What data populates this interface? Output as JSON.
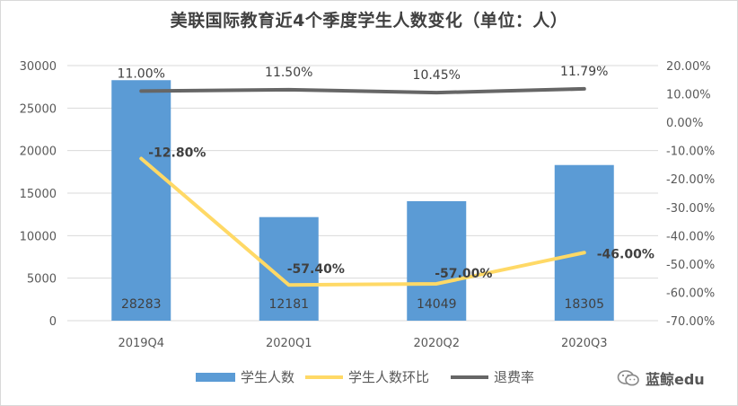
{
  "title": "美联国际教育近4个季度学生人数变化（单位：人）",
  "watermark": {
    "text": "蓝鲸edu",
    "icon": "wechat-icon"
  },
  "colors": {
    "bar": "#5b9bd5",
    "qoq": "#ffd966",
    "refund": "#666666",
    "grid": "#d9d9d9",
    "axis_text": "#595959"
  },
  "chart_data": {
    "type": "bar",
    "title": "美联国际教育近4个季度学生人数变化（单位：人）",
    "categories": [
      "2019Q4",
      "2020Q1",
      "2020Q2",
      "2020Q3"
    ],
    "left_axis": {
      "min": 0,
      "max": 30000,
      "step": 5000,
      "ticks": [
        "0",
        "5000",
        "10000",
        "15000",
        "20000",
        "25000",
        "30000"
      ]
    },
    "right_axis": {
      "min": -70,
      "max": 20,
      "step": 10,
      "ticks": [
        "-70.00%",
        "-60.00%",
        "-50.00%",
        "-40.00%",
        "-30.00%",
        "-20.00%",
        "-10.00%",
        "0.00%",
        "10.00%",
        "20.00%"
      ]
    },
    "series": [
      {
        "name": "学生人数",
        "type": "bar",
        "axis": "left",
        "values": [
          28283,
          12181,
          14049,
          18305
        ],
        "labels": [
          "28283",
          "12181",
          "14049",
          "18305"
        ]
      },
      {
        "name": "学生人数环比",
        "type": "line",
        "axis": "right",
        "values": [
          -12.8,
          -57.4,
          -57.0,
          -46.0
        ],
        "labels": [
          "-12.80%",
          "-57.40%",
          "-57.00%",
          "-46.00%"
        ]
      },
      {
        "name": "退费率",
        "type": "line",
        "axis": "right",
        "values": [
          11.0,
          11.5,
          10.45,
          11.79
        ],
        "labels": [
          "11.00%",
          "11.50%",
          "10.45%",
          "11.79%"
        ]
      }
    ],
    "grid": true,
    "legend": "bottom"
  }
}
